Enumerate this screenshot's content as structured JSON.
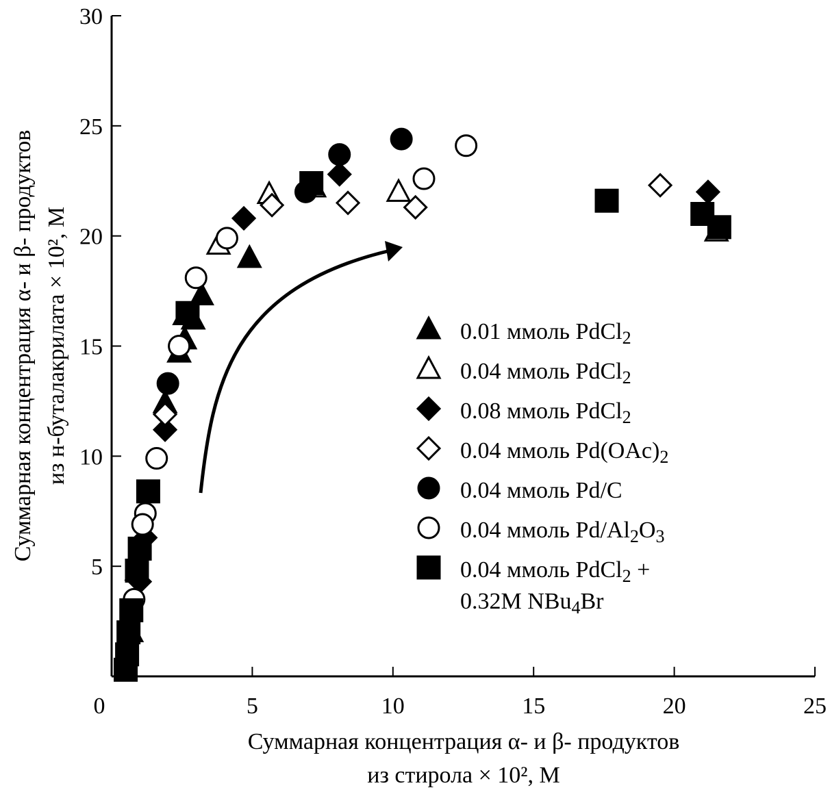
{
  "chart_data": {
    "type": "scatter",
    "title": "",
    "xlabel_lines": [
      "Суммарная концентрация α- и β- продуктов",
      "из стирола × 10², М"
    ],
    "ylabel_lines": [
      "Суммарная концентрация α- и β- продуктов",
      "из н-буталакрилата × 10², М"
    ],
    "xlim": [
      0,
      25
    ],
    "ylim": [
      0,
      30
    ],
    "xticks": [
      0,
      5,
      10,
      15,
      20,
      25
    ],
    "yticks": [
      5,
      10,
      15,
      20,
      25,
      30
    ],
    "x_tick_labels": [
      "0",
      "5",
      "10",
      "15",
      "20",
      "25"
    ],
    "y_tick_labels": [
      "5",
      "10",
      "15",
      "20",
      "25",
      "30"
    ],
    "grid": false,
    "legend_position": "center-right",
    "annotation": "curved arrow indicating trend direction (increasing styrene product concentration)",
    "series": [
      {
        "name": "0.01 ммоль PdCl2",
        "label_main": "0.01 ммоль PdCl",
        "label_sub": "2",
        "label_tail": "",
        "marker": "triangle",
        "filled": true,
        "points": [
          [
            4.9,
            19.0
          ],
          [
            3.2,
            17.3
          ],
          [
            2.9,
            16.2
          ],
          [
            2.6,
            15.3
          ],
          [
            2.4,
            14.7
          ],
          [
            1.9,
            12.4
          ],
          [
            0.9,
            4.8
          ],
          [
            0.7,
            2.0
          ]
        ]
      },
      {
        "name": "0.04 ммоль PdCl2",
        "label_main": "0.04 ммоль PdCl",
        "label_sub": "2",
        "label_tail": "",
        "marker": "triangle",
        "filled": false,
        "points": [
          [
            3.8,
            19.6
          ],
          [
            5.6,
            21.9
          ],
          [
            7.2,
            22.2
          ],
          [
            10.2,
            22.0
          ],
          [
            21.5,
            20.2
          ],
          [
            2.6,
            16.4
          ]
        ]
      },
      {
        "name": "0.08 ммоль PdCl2",
        "label_main": "0.08 ммоль PdCl",
        "label_sub": "2",
        "label_tail": "",
        "marker": "diamond",
        "filled": true,
        "points": [
          [
            4.7,
            20.8
          ],
          [
            8.1,
            22.8
          ],
          [
            21.2,
            22.0
          ],
          [
            1.9,
            11.2
          ],
          [
            1.2,
            6.3
          ],
          [
            1.0,
            4.3
          ]
        ]
      },
      {
        "name": "0.04 ммоль Pd(OAc)2",
        "label_main": "0.04 ммоль Pd(OAc)",
        "label_sub": "2",
        "label_tail": "",
        "marker": "diamond",
        "filled": false,
        "points": [
          [
            5.7,
            21.4
          ],
          [
            8.4,
            21.5
          ],
          [
            10.8,
            21.3
          ],
          [
            19.5,
            22.3
          ],
          [
            1.9,
            11.9
          ]
        ]
      },
      {
        "name": "0.04 ммоль Pd/C",
        "label_main": "0.04 ммоль Pd/C",
        "label_sub": "",
        "label_tail": "",
        "marker": "circle",
        "filled": true,
        "points": [
          [
            10.3,
            24.4
          ],
          [
            8.1,
            23.7
          ],
          [
            6.9,
            22.0
          ],
          [
            2.0,
            13.3
          ]
        ]
      },
      {
        "name": "0.04 ммоль Pd/Al2O3",
        "label_main": "0.04 ммоль Pd/Al",
        "label_sub": "2",
        "label_tail": "O",
        "label_sub2": "3",
        "marker": "circle",
        "filled": false,
        "points": [
          [
            12.6,
            24.1
          ],
          [
            11.1,
            22.6
          ],
          [
            4.1,
            19.9
          ],
          [
            3.0,
            18.1
          ],
          [
            2.4,
            15.0
          ],
          [
            1.6,
            9.9
          ],
          [
            1.2,
            7.4
          ],
          [
            1.1,
            6.9
          ],
          [
            0.8,
            3.5
          ]
        ]
      },
      {
        "name": "0.04 ммоль PdCl2 + 0.32M NBu4Br",
        "label_main": "0.04 ммоль PdCl",
        "label_sub": "2",
        "label_tail": " +",
        "label_line2_main": "0.32M NBu",
        "label_line2_sub": "4",
        "label_line2_tail": "Br",
        "marker": "square",
        "filled": true,
        "points": [
          [
            17.6,
            21.6
          ],
          [
            21.0,
            21.0
          ],
          [
            21.6,
            20.4
          ],
          [
            7.1,
            22.4
          ],
          [
            2.7,
            16.5
          ],
          [
            1.3,
            8.4
          ],
          [
            1.0,
            5.8
          ],
          [
            0.9,
            4.8
          ],
          [
            0.7,
            3.0
          ],
          [
            0.6,
            2.0
          ],
          [
            0.55,
            1.0
          ],
          [
            0.5,
            0.3
          ]
        ]
      }
    ]
  }
}
